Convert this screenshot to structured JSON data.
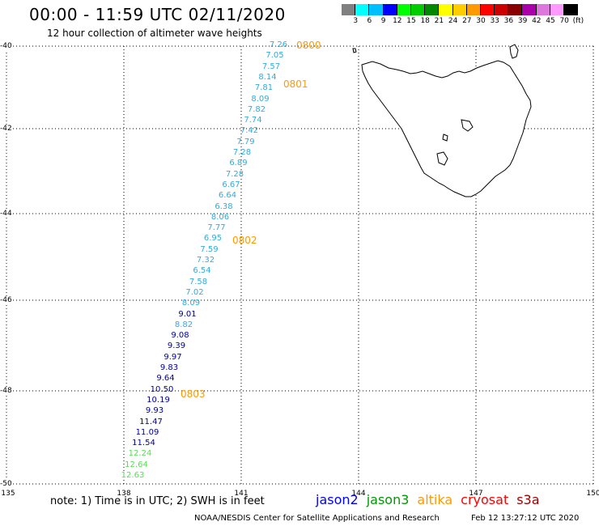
{
  "header": {
    "title": "00:00 - 11:59 UTC 02/11/2020",
    "subtitle": "12 hour collection of altimeter wave heights"
  },
  "scale": {
    "colors": [
      "#808080",
      "#00ffff",
      "#00bfff",
      "#0000ff",
      "#00ff00",
      "#00cc00",
      "#008800",
      "#ffff00",
      "#ffcc00",
      "#ff9900",
      "#ff0000",
      "#cc0000",
      "#880000",
      "#aa00aa",
      "#dd77dd",
      "#ff99ff",
      "#000000"
    ],
    "labels": [
      "3",
      "6",
      "9",
      "12",
      "15",
      "18",
      "21",
      "24",
      "27",
      "30",
      "33",
      "36",
      "39",
      "42",
      "45",
      "70",
      "(ft)"
    ]
  },
  "map": {
    "lon_labels": [
      "135",
      "138",
      "141",
      "144",
      "147",
      "150"
    ],
    "lat_labels": [
      "-40",
      "-42",
      "-44",
      "-46",
      "-48",
      "-50"
    ],
    "land_color": "#ffffff",
    "coast_color": "#000000",
    "grid_style": "dotted"
  },
  "track": {
    "points": [
      {
        "v": "7.26",
        "c": "#33aadd"
      },
      {
        "v": "7.05",
        "c": "#33aadd"
      },
      {
        "v": "7.57",
        "c": "#33aadd"
      },
      {
        "v": "8.14",
        "c": "#33aadd"
      },
      {
        "v": "7.81",
        "c": "#33aadd"
      },
      {
        "v": "8.09",
        "c": "#33aadd"
      },
      {
        "v": "7.82",
        "c": "#33aadd"
      },
      {
        "v": "7.74",
        "c": "#33aadd"
      },
      {
        "v": "7.42",
        "c": "#33aadd"
      },
      {
        "v": "7.79",
        "c": "#33aadd"
      },
      {
        "v": "7.28",
        "c": "#33aadd"
      },
      {
        "v": "6.89",
        "c": "#33aadd"
      },
      {
        "v": "7.28",
        "c": "#33aadd"
      },
      {
        "v": "6.67",
        "c": "#33aadd"
      },
      {
        "v": "6.64",
        "c": "#33aadd"
      },
      {
        "v": "6.38",
        "c": "#33aadd"
      },
      {
        "v": "8.06",
        "c": "#33aadd"
      },
      {
        "v": "7.77",
        "c": "#33aadd"
      },
      {
        "v": "6.95",
        "c": "#33aadd"
      },
      {
        "v": "7.59",
        "c": "#33aadd"
      },
      {
        "v": "7.32",
        "c": "#33aadd"
      },
      {
        "v": "6.54",
        "c": "#33aadd"
      },
      {
        "v": "7.58",
        "c": "#33aadd"
      },
      {
        "v": "7.02",
        "c": "#33aadd"
      },
      {
        "v": "8.09",
        "c": "#33aadd"
      },
      {
        "v": "9.01",
        "c": "#000099"
      },
      {
        "v": "8.82",
        "c": "#33aadd"
      },
      {
        "v": "9.08",
        "c": "#000099"
      },
      {
        "v": "9.39",
        "c": "#000099"
      },
      {
        "v": "9.97",
        "c": "#000099"
      },
      {
        "v": "9.83",
        "c": "#000099"
      },
      {
        "v": "9.64",
        "c": "#000099"
      },
      {
        "v": "10.50",
        "c": "#000099"
      },
      {
        "v": "10.19",
        "c": "#000099"
      },
      {
        "v": "9.93",
        "c": "#000099"
      },
      {
        "v": "11.47",
        "c": "#000099"
      },
      {
        "v": "11.09",
        "c": "#000099"
      },
      {
        "v": "11.54",
        "c": "#000099"
      },
      {
        "v": "12.24",
        "c": "#55dd55"
      },
      {
        "v": "12.64",
        "c": "#55dd55"
      },
      {
        "v": "12.63",
        "c": "#55dd55"
      }
    ],
    "times": [
      "0800",
      "0801",
      "0802",
      "0803"
    ]
  },
  "note": "note: 1) Time is in UTC; 2) SWH is in feet",
  "legend": [
    {
      "name": "jason2",
      "color": "#0000ff"
    },
    {
      "name": "jason3",
      "color": "#009900"
    },
    {
      "name": "altika",
      "color": "#ff9900"
    },
    {
      "name": "cryosat",
      "color": "#ff0000"
    },
    {
      "name": "s3a",
      "color": "#990000"
    }
  ],
  "footer": {
    "agency": "NOAA/NESDIS Center for Satellite Applications and Research",
    "timestamp": "Feb 12 13:27:12 UTC 2020"
  }
}
